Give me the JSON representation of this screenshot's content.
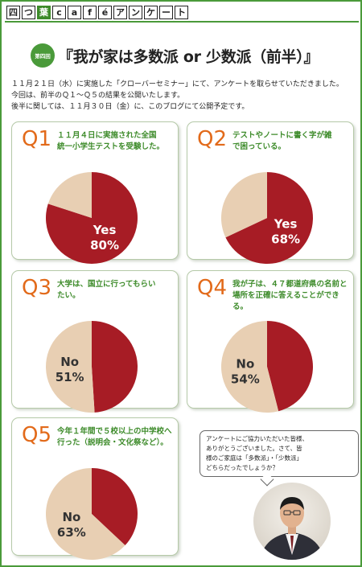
{
  "header": {
    "brand_chars": [
      "四",
      "つ",
      "葉",
      "c",
      "a",
      "f",
      "é",
      "ア",
      "ン",
      "ケ",
      "ー",
      "ト"
    ]
  },
  "title": {
    "badge": "第四回",
    "text": "『我が家は多数派 or 少数派（前半）』"
  },
  "intro": {
    "lines": [
      "１１月２１日（水）に実施した「クローバーセミナー」にて、アンケートを取らせていただきました。",
      "今回は、前半のＱ１～Ｑ５の結果を公開いたします。",
      "後半に関しては、１１月３０日（金）に、このブログにて公開予定です。"
    ]
  },
  "colors": {
    "majority": "#a71c25",
    "minority": "#e8cfb3",
    "accent_orange": "#e26a1a",
    "accent_green": "#3d8b2a"
  },
  "chart_data": [
    {
      "type": "pie",
      "title": "Q1",
      "question_lines": [
        "１１月４日に実施された全国",
        "統一小学生テストを受験した。"
      ],
      "highlight": "Yes",
      "slices": [
        {
          "label": "Yes",
          "value": 80
        },
        {
          "label": "",
          "value": 20
        }
      ],
      "value_label": "80%"
    },
    {
      "type": "pie",
      "title": "Q2",
      "question_lines": [
        "テストやノートに書く字が雑",
        "で困っている。"
      ],
      "highlight": "Yes",
      "slices": [
        {
          "label": "Yes",
          "value": 68
        },
        {
          "label": "",
          "value": 32
        }
      ],
      "value_label": "68%"
    },
    {
      "type": "pie",
      "title": "Q3",
      "question_lines": [
        "大学は、国立に行ってもらい",
        "たい。"
      ],
      "highlight": "No",
      "slices": [
        {
          "label": "",
          "value": 49
        },
        {
          "label": "No",
          "value": 51
        }
      ],
      "value_label": "51%"
    },
    {
      "type": "pie",
      "title": "Q4",
      "question_lines": [
        "我が子は、４７都道府県の名前と",
        "場所を正確に答えることができる。"
      ],
      "highlight": "No",
      "slices": [
        {
          "label": "",
          "value": 46
        },
        {
          "label": "No",
          "value": 54
        }
      ],
      "value_label": "54%"
    },
    {
      "type": "pie",
      "title": "Q5",
      "question_lines": [
        "今年１年間で５校以上の中学校へ",
        "行った（説明会・文化祭など）。"
      ],
      "highlight": "No",
      "slices": [
        {
          "label": "",
          "value": 37
        },
        {
          "label": "No",
          "value": 63
        }
      ],
      "value_label": "63%"
    }
  ],
  "bubble": {
    "lines": [
      "アンケートにご協力いただいた皆様、",
      "ありがとうございました。さて、皆",
      "様のご家庭は「多数派」・「少数派」",
      "どちらだったでしょうか？"
    ]
  }
}
